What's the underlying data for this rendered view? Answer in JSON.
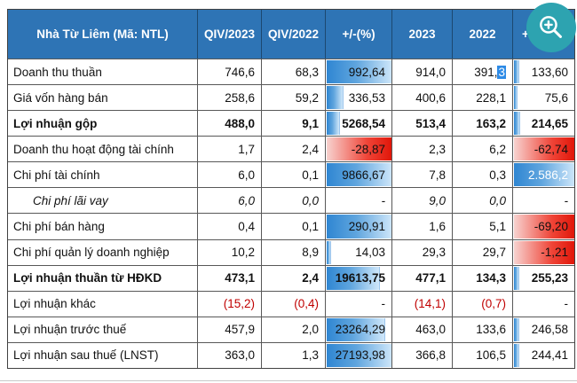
{
  "table": {
    "title": "Nhà Từ Liêm (Mã: NTL)",
    "columns": [
      "QIV/2023",
      "QIV/2022",
      "+/-(%)",
      "2023",
      "2022",
      "+"
    ],
    "rows": [
      {
        "label": "Doanh thu thuần",
        "cells": [
          {
            "text": "746,6"
          },
          {
            "text": "68,3"
          },
          {
            "text": "992,64",
            "bar": "blue",
            "width": 100
          },
          {
            "text": "914,0"
          },
          {
            "text": "391,3",
            "sel": true
          },
          {
            "text": "133,60",
            "bar": "blue",
            "width": 7
          }
        ]
      },
      {
        "label": "Giá vốn hàng bán",
        "cells": [
          {
            "text": "258,6"
          },
          {
            "text": "59,2"
          },
          {
            "text": "336,53",
            "bar": "blue",
            "width": 24
          },
          {
            "text": "400,6"
          },
          {
            "text": "228,1"
          },
          {
            "text": "75,6",
            "bar": "blue",
            "width": 4
          }
        ]
      },
      {
        "label": "Lợi nhuận gộp",
        "bold": true,
        "cells": [
          {
            "text": "488,0"
          },
          {
            "text": "9,1"
          },
          {
            "text": "5268,54",
            "bar": "blue",
            "width": 19
          },
          {
            "text": "513,4"
          },
          {
            "text": "163,2"
          },
          {
            "text": "214,65",
            "bar": "blue",
            "width": 8
          }
        ]
      },
      {
        "label": "Doanh thu hoạt động tài chính",
        "cells": [
          {
            "text": "1,7"
          },
          {
            "text": "2,4"
          },
          {
            "text": "-28,87",
            "bar": "red",
            "width": 100
          },
          {
            "text": "2,3"
          },
          {
            "text": "6,2"
          },
          {
            "text": "-62,74",
            "bar": "red",
            "width": 100
          }
        ]
      },
      {
        "label": "Chi phí tài chính",
        "cells": [
          {
            "text": "6,0"
          },
          {
            "text": "0,1"
          },
          {
            "text": "9866,67",
            "bar": "blue",
            "width": 100
          },
          {
            "text": "7,8"
          },
          {
            "text": "0,3"
          },
          {
            "text": "2.586,2",
            "bar": "blue",
            "width": 100,
            "white": true
          }
        ]
      },
      {
        "label": "Chi phí lãi vay",
        "italic": true,
        "cells": [
          {
            "text": "6,0"
          },
          {
            "text": "0,0"
          },
          {
            "text": "-"
          },
          {
            "text": "9,0"
          },
          {
            "text": "0,0"
          },
          {
            "text": "-"
          }
        ]
      },
      {
        "label": "Chi phí bán hàng",
        "cells": [
          {
            "text": "0,4"
          },
          {
            "text": "0,1"
          },
          {
            "text": "290,91",
            "bar": "blue",
            "width": 100
          },
          {
            "text": "1,6"
          },
          {
            "text": "5,1"
          },
          {
            "text": "-69,20",
            "bar": "red",
            "width": 100
          }
        ]
      },
      {
        "label": "Chi phí quản lý doanh nghiệp",
        "cells": [
          {
            "text": "10,2"
          },
          {
            "text": "8,9"
          },
          {
            "text": "14,03",
            "bar": "blue",
            "width": 6
          },
          {
            "text": "29,3"
          },
          {
            "text": "29,7"
          },
          {
            "text": "-1,21",
            "bar": "red",
            "width": 100
          }
        ]
      },
      {
        "label": "Lợi nhuận thuần từ HĐKD",
        "bold": true,
        "cells": [
          {
            "text": "473,1"
          },
          {
            "text": "2,4"
          },
          {
            "text": "19613,75",
            "bar": "blue",
            "width": 80
          },
          {
            "text": "477,1"
          },
          {
            "text": "134,3"
          },
          {
            "text": "255,23",
            "bar": "blue",
            "width": 7
          }
        ]
      },
      {
        "label": "Lợi nhuận khác",
        "cells": [
          {
            "text": "(15,2)",
            "neg": true
          },
          {
            "text": "(0,4)",
            "neg": true
          },
          {
            "text": "-"
          },
          {
            "text": "(14,1)",
            "neg": true
          },
          {
            "text": "(0,7)",
            "neg": true
          },
          {
            "text": "-"
          }
        ]
      },
      {
        "label": "Lợi nhuận trước thuế",
        "cells": [
          {
            "text": "457,9"
          },
          {
            "text": "2,0"
          },
          {
            "text": "23264,29",
            "bar": "blue",
            "width": 88
          },
          {
            "text": "463,0"
          },
          {
            "text": "133,6"
          },
          {
            "text": "246,58",
            "bar": "blue",
            "width": 7
          }
        ]
      },
      {
        "label": "Lợi nhuận sau thuế (LNST)",
        "cells": [
          {
            "text": "363,0"
          },
          {
            "text": "1,3"
          },
          {
            "text": "27193,98",
            "bar": "blue",
            "width": 100
          },
          {
            "text": "366,8"
          },
          {
            "text": "106,5"
          },
          {
            "text": "244,41",
            "bar": "blue",
            "width": 7
          }
        ]
      }
    ]
  },
  "zoom_button": {
    "icon": "zoom-in-icon",
    "color": "#2da3b0"
  },
  "colors": {
    "header_blue": "#2e74b5",
    "bar_blue_dark": "#2f86d2",
    "bar_blue_light": "#cfe7fa",
    "bar_red_dark": "#e01508",
    "bar_red_light": "#f7d2cf",
    "negative_text": "#c00000",
    "selection_blue": "#2e8be6",
    "grid_line": "#585858"
  }
}
